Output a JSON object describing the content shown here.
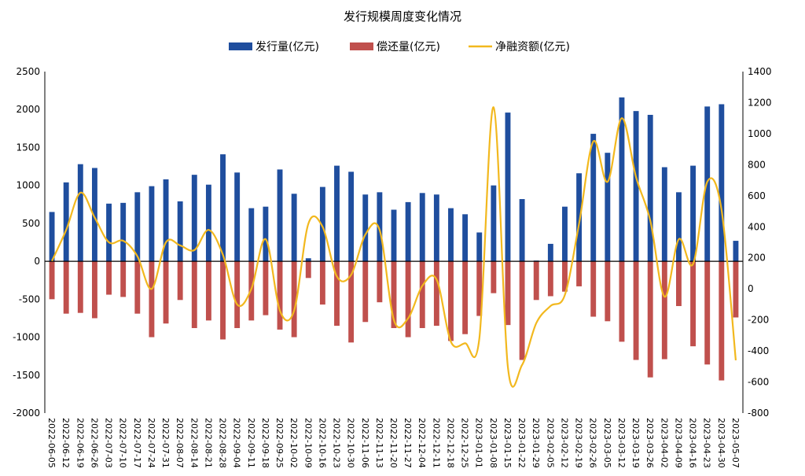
{
  "chart_data": {
    "type": "bar+line",
    "title": "发行规模周度变化情况",
    "legend": [
      {
        "name": "发行量(亿元)",
        "color": "#1F4E9E",
        "kind": "bar"
      },
      {
        "name": "偿还量(亿元)",
        "color": "#C0504D",
        "kind": "bar"
      },
      {
        "name": "净融资额(亿元)",
        "color": "#F2B81E",
        "kind": "line"
      }
    ],
    "legend_position": "top-center",
    "grid": false,
    "left_axis": {
      "min": -2000,
      "max": 2500,
      "ticks": [
        -2000,
        -1500,
        -1000,
        -500,
        0,
        500,
        1000,
        1500,
        2000,
        2500
      ]
    },
    "right_axis": {
      "min": -800,
      "max": 1400,
      "ticks": [
        -800,
        -600,
        -400,
        -200,
        0,
        200,
        400,
        600,
        800,
        1000,
        1200,
        1400
      ]
    },
    "categories": [
      "2022-06-05",
      "2022-06-12",
      "2022-06-19",
      "2022-06-26",
      "2022-07-03",
      "2022-07-10",
      "2022-07-17",
      "2022-07-24",
      "2022-07-31",
      "2022-08-07",
      "2022-08-14",
      "2022-08-21",
      "2022-08-28",
      "2022-09-04",
      "2022-09-11",
      "2022-09-18",
      "2022-09-25",
      "2022-10-02",
      "2022-10-09",
      "2022-10-16",
      "2022-10-23",
      "2022-10-30",
      "2022-11-06",
      "2022-11-13",
      "2022-11-20",
      "2022-11-27",
      "2022-12-04",
      "2022-12-11",
      "2022-12-18",
      "2022-12-25",
      "2023-01-01",
      "2023-01-08",
      "2023-01-15",
      "2023-01-22",
      "2023-01-29",
      "2023-02-05",
      "2023-02-12",
      "2023-02-19",
      "2023-02-26",
      "2023-03-05",
      "2023-03-12",
      "2023-03-19",
      "2023-03-26",
      "2023-04-02",
      "2023-04-09",
      "2023-04-16",
      "2023-04-23",
      "2023-04-30",
      "2023-05-07"
    ],
    "x_tick_labels": [
      "2022-06-05",
      "2022-06-12",
      "2022-06-19",
      "2022-06-26",
      "2022-07-03",
      "2022-07-10",
      "2022-07-17",
      "2022-07-24",
      "2022-07-31",
      "2022-08-07",
      "2022-08-14",
      "2022-08-21",
      "2022-08-28",
      "2022-09-04",
      "2022-09-11",
      "2022-09-18",
      "2022-09-25",
      "2022-10-02",
      "2022-10-09",
      "2022-10-16",
      "2022-10-23",
      "2022-10-30",
      "2022-11-06",
      "2022-11-13",
      "2022-11-20",
      "2022-11-27",
      "2022-12-04",
      "2022-12-11",
      "2022-12-18",
      "2022-12-25",
      "2023-01-01",
      "2023-01-08",
      "2023-01-15",
      "2023-01-22",
      "2023-01-29",
      "2023-02-05",
      "2023-02-12",
      "2023-02-19",
      "2023-02-26",
      "2023-03-05",
      "2023-03-12",
      "2023-03-19",
      "2023-03-26",
      "2023-04-02",
      "2023-04-09",
      "2023-04-16",
      "2023-04-23",
      "2023-04-30",
      "2023-05-07"
    ],
    "series": [
      {
        "name": "发行量(亿元)",
        "axis": "left",
        "values": [
          650,
          1040,
          1280,
          1230,
          760,
          770,
          910,
          990,
          1080,
          790,
          1140,
          1010,
          1410,
          1170,
          700,
          720,
          1210,
          890,
          40,
          980,
          1260,
          1180,
          880,
          910,
          680,
          780,
          900,
          880,
          700,
          620,
          380,
          1000,
          1960,
          820,
          10,
          230,
          720,
          1160,
          1680,
          1430,
          2160,
          1980,
          1930,
          1240,
          910,
          1260,
          2040,
          2070,
          270
        ]
      },
      {
        "name": "偿还量(亿元)",
        "axis": "left",
        "values": [
          -500,
          -690,
          -680,
          -750,
          -440,
          -470,
          -690,
          -1000,
          -820,
          -510,
          -880,
          -780,
          -1030,
          -880,
          -780,
          -710,
          -900,
          -1000,
          -220,
          -570,
          -850,
          -1070,
          -800,
          -540,
          -880,
          -1000,
          -880,
          -850,
          -1050,
          -960,
          -720,
          -420,
          -840,
          -1300,
          -510,
          -460,
          -400,
          -330,
          -730,
          -790,
          -1060,
          -1300,
          -1530,
          -1290,
          -590,
          -1120,
          -1360,
          -1570,
          -740
        ]
      },
      {
        "name": "净融资额(亿元)",
        "axis": "right",
        "values": [
          180,
          380,
          620,
          460,
          300,
          310,
          210,
          0,
          300,
          280,
          250,
          380,
          220,
          -100,
          0,
          320,
          -140,
          -140,
          420,
          400,
          80,
          90,
          350,
          380,
          -200,
          -190,
          20,
          60,
          -340,
          -350,
          -320,
          1170,
          -500,
          -490,
          -220,
          -110,
          -40,
          420,
          950,
          690,
          1100,
          720,
          440,
          -50,
          320,
          160,
          690,
          510,
          -460
        ]
      }
    ]
  }
}
